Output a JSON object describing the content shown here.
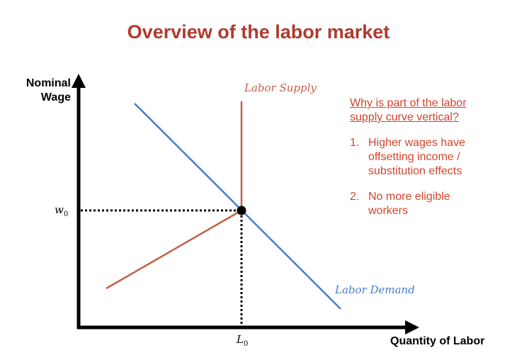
{
  "title": "Overview of the labor market",
  "axes": {
    "y_label_line1": "Nominal",
    "y_label_line2": "Wage",
    "x_label": "Quantity of Labor"
  },
  "curves": {
    "supply_label": "Labor Supply",
    "demand_label": "Labor Demand",
    "supply_color": "#c0604a",
    "demand_color": "#4a7cc8"
  },
  "equilibrium": {
    "wage_symbol": "w",
    "wage_subscript": "0",
    "quantity_symbol": "L",
    "quantity_subscript": "0"
  },
  "notes": {
    "question": "Why is part of the labor supply curve vertical?",
    "items": [
      {
        "number": "1.",
        "text": "Higher wages have offsetting income / substitution effects"
      },
      {
        "number": "2.",
        "text": "No more eligible workers"
      }
    ],
    "color": "#d2442c"
  },
  "colors": {
    "title": "#b03a2e",
    "axis": "#000000"
  }
}
